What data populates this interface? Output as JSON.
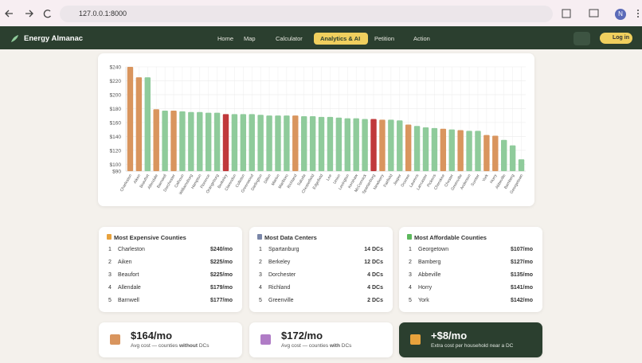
{
  "browser": {
    "url": "127.0.0.1:8000",
    "profile": "N"
  },
  "nav": {
    "brand": "Energy Almanac",
    "items": [
      "Home",
      "Map",
      "Calculator",
      "Analytics & AI",
      "Petition",
      "Action"
    ],
    "login": "Log in"
  },
  "chart_data": {
    "type": "bar",
    "categories": [
      "Charleston",
      "Aiken",
      "Beaufort",
      "Allendale",
      "Barnwell",
      "Dorchester",
      "Calhoun",
      "Williamsburg",
      "Hampton",
      "Florence",
      "Orangeburg",
      "Berkeley",
      "Clarendon",
      "Colleton",
      "Greenwood",
      "Darlington",
      "Dillon",
      "Marion",
      "Marlboro",
      "Richland",
      "Saluda",
      "Chesterfield",
      "Edgefield",
      "Lee",
      "Union",
      "Lexington",
      "Kershaw",
      "McCormick",
      "Spartanburg",
      "Newberry",
      "Fairfield",
      "Jasper",
      "Oconee",
      "Laurens",
      "Lancaster",
      "Pickens",
      "Cherokee",
      "Chester",
      "Greenville",
      "Anderson",
      "Sumter",
      "York",
      "Horry",
      "Abbeville",
      "Bamberg",
      "Georgetown"
    ],
    "values": [
      240,
      225,
      225,
      179,
      177,
      177,
      176,
      175,
      175,
      174,
      174,
      172,
      172,
      172,
      172,
      171,
      170,
      170,
      170,
      170,
      169,
      169,
      168,
      168,
      167,
      166,
      166,
      165,
      165,
      164,
      164,
      163,
      157,
      155,
      153,
      152,
      151,
      150,
      149,
      148,
      148,
      142,
      141,
      135,
      127,
      107
    ],
    "colors": [
      "#d9955e",
      "#d9955e",
      "#8fcb9b",
      "#d9955e",
      "#8fcb9b",
      "#d9955e",
      "#8fcb9b",
      "#8fcb9b",
      "#8fcb9b",
      "#8fcb9b",
      "#8fcb9b",
      "#c0393b",
      "#8fcb9b",
      "#8fcb9b",
      "#8fcb9b",
      "#8fcb9b",
      "#8fcb9b",
      "#8fcb9b",
      "#8fcb9b",
      "#d9955e",
      "#8fcb9b",
      "#8fcb9b",
      "#8fcb9b",
      "#8fcb9b",
      "#8fcb9b",
      "#8fcb9b",
      "#8fcb9b",
      "#8fcb9b",
      "#c0393b",
      "#d9955e",
      "#8fcb9b",
      "#8fcb9b",
      "#d9955e",
      "#8fcb9b",
      "#8fcb9b",
      "#8fcb9b",
      "#d9955e",
      "#8fcb9b",
      "#d9955e",
      "#8fcb9b",
      "#8fcb9b",
      "#d9955e",
      "#d9955e",
      "#8fcb9b",
      "#8fcb9b",
      "#8fcb9b"
    ],
    "ylim": [
      90,
      240
    ],
    "yticks": [
      {
        "value": 90,
        "label": "$90"
      },
      {
        "value": 100,
        "label": "$100"
      },
      {
        "value": 120,
        "label": "$120"
      },
      {
        "value": 140,
        "label": "$140"
      },
      {
        "value": 160,
        "label": "$160"
      },
      {
        "value": 180,
        "label": "$180"
      },
      {
        "value": 200,
        "label": "$200"
      },
      {
        "value": 220,
        "label": "$220"
      },
      {
        "value": 240,
        "label": "$240"
      }
    ],
    "grid": true
  },
  "lists": [
    {
      "title": "Most Expensive Counties",
      "rows": [
        [
          "1",
          "Charleston",
          "$240/mo"
        ],
        [
          "2",
          "Aiken",
          "$225/mo"
        ],
        [
          "3",
          "Beaufort",
          "$225/mo"
        ],
        [
          "4",
          "Allendale",
          "$179/mo"
        ],
        [
          "5",
          "Barnwell",
          "$177/mo"
        ]
      ]
    },
    {
      "title": "Most Data Centers",
      "rows": [
        [
          "1",
          "Spartanburg",
          "14 DCs"
        ],
        [
          "2",
          "Berkeley",
          "12 DCs"
        ],
        [
          "3",
          "Dorchester",
          "4 DCs"
        ],
        [
          "4",
          "Richland",
          "4 DCs"
        ],
        [
          "5",
          "Greenville",
          "2 DCs"
        ]
      ]
    },
    {
      "title": "Most Affordable Counties",
      "rows": [
        [
          "1",
          "Georgetown",
          "$107/mo"
        ],
        [
          "2",
          "Bamberg",
          "$127/mo"
        ],
        [
          "3",
          "Abbeville",
          "$135/mo"
        ],
        [
          "4",
          "Horry",
          "$141/mo"
        ],
        [
          "5",
          "York",
          "$142/mo"
        ]
      ]
    }
  ],
  "stats": [
    {
      "value": "$164/mo",
      "label": [
        "Avg cost — counties ",
        "without",
        " DCs"
      ]
    },
    {
      "value": "$172/mo",
      "label": [
        "Avg cost — counties ",
        "with",
        " DCs"
      ]
    },
    {
      "value": "+$8/mo",
      "label": [
        "Extra cost per household near a DC"
      ]
    }
  ]
}
